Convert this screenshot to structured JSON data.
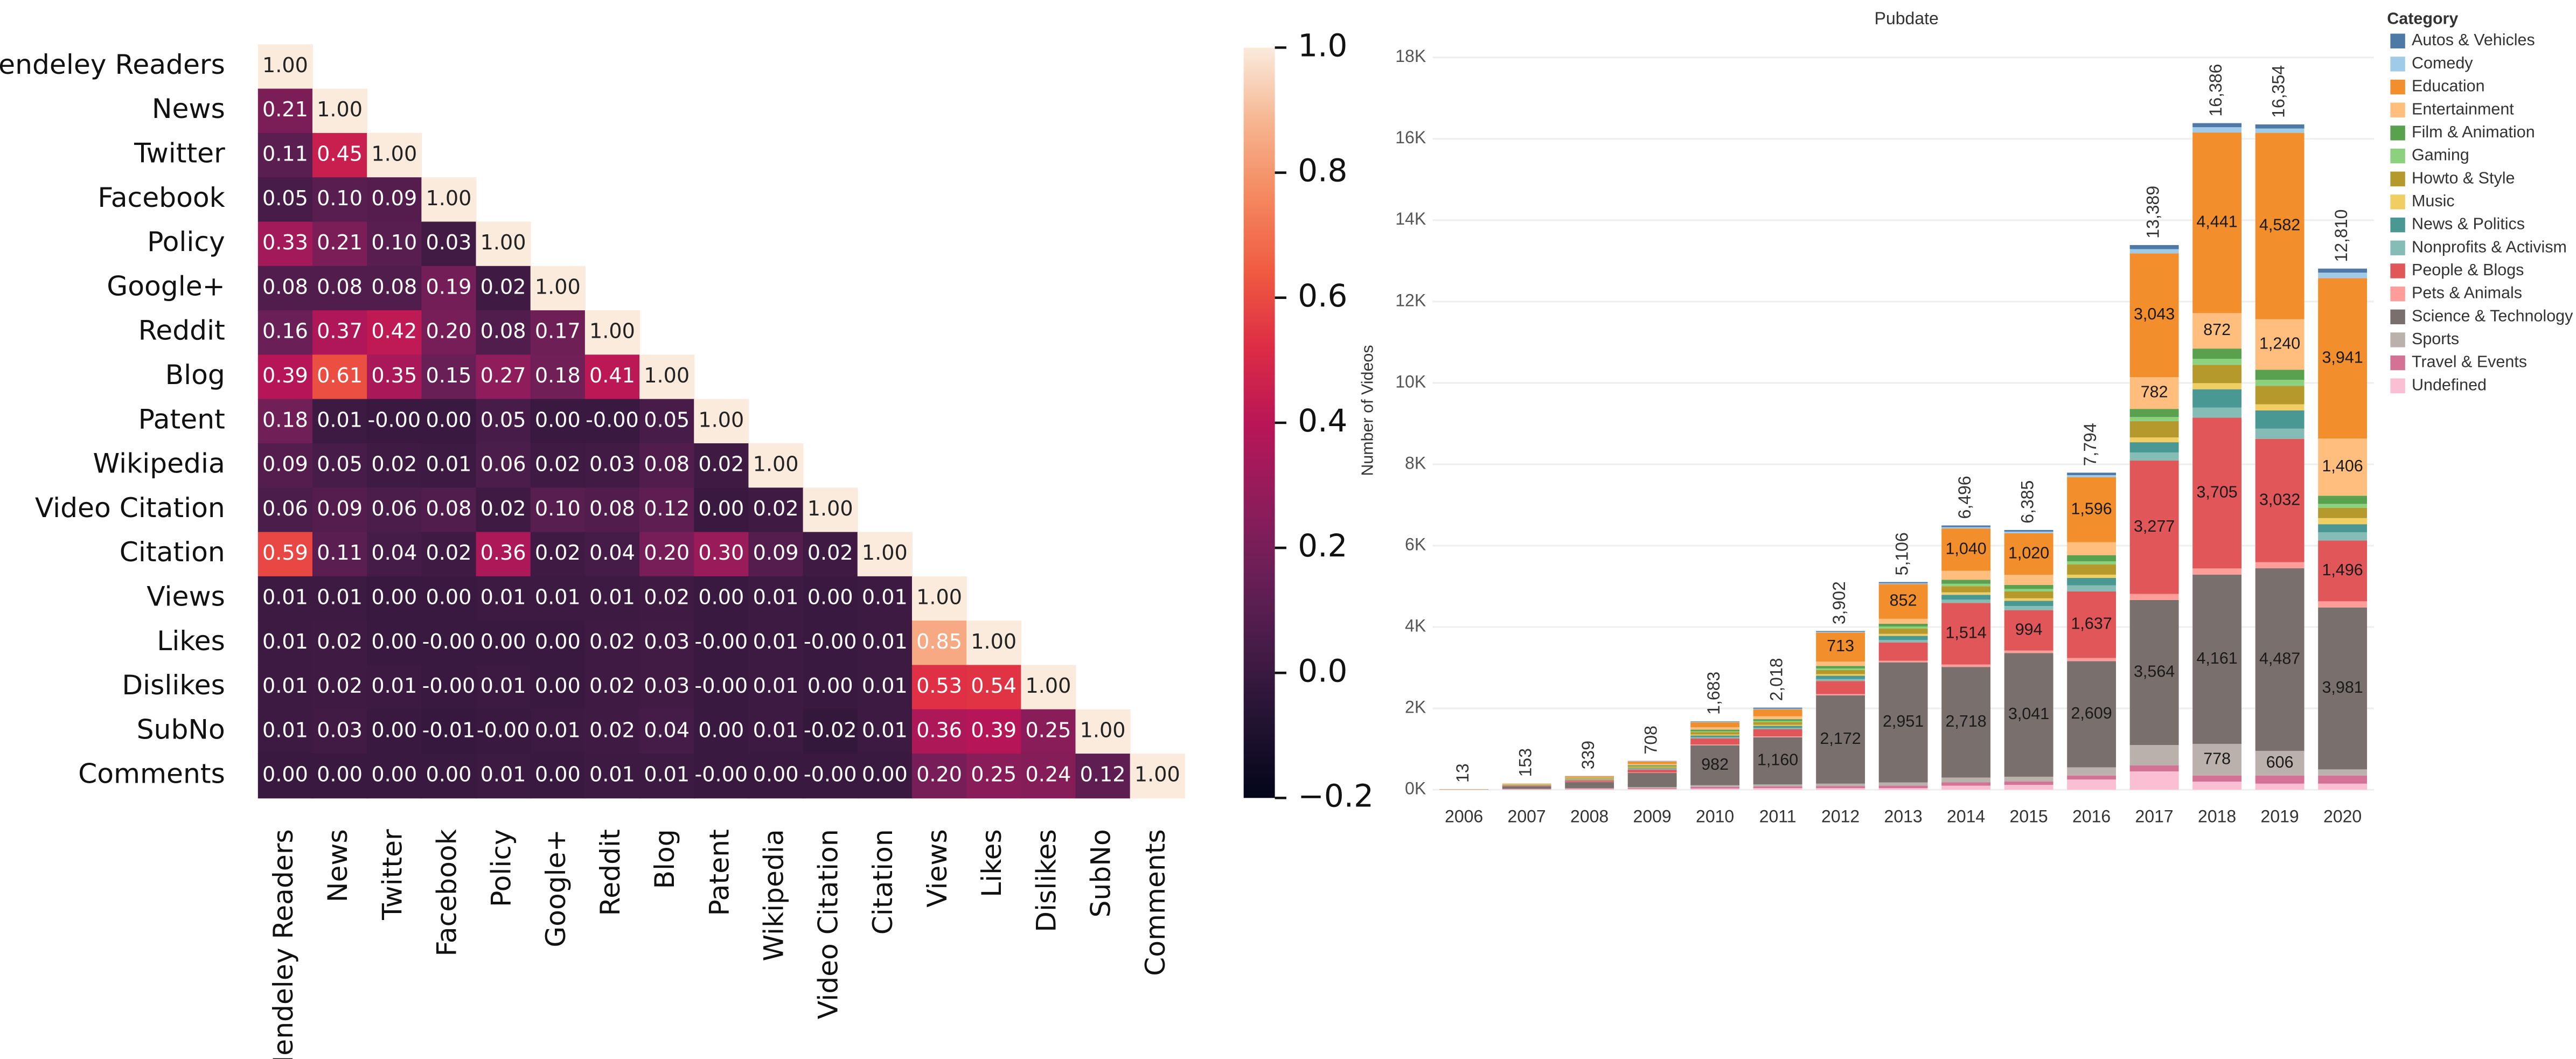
{
  "chart_data": [
    {
      "type": "heatmap",
      "row_labels": [
        "Mendeley Readers",
        "News",
        "Twitter",
        "Facebook",
        "Policy",
        "Google+",
        "Reddit",
        "Blog",
        "Patent",
        "Wikipedia",
        "Video Citation",
        "Citation",
        "Views",
        "Likes",
        "Dislikes",
        "SubNo",
        "Comments"
      ],
      "col_labels": [
        "Mendeley Readers",
        "News",
        "Twitter",
        "Facebook",
        "Policy",
        "Google+",
        "Reddit",
        "Blog",
        "Patent",
        "Wikipedia",
        "Video Citation",
        "Citation",
        "Views",
        "Likes",
        "Dislikes",
        "SubNo",
        "Comments"
      ],
      "values": [
        [
          1
        ],
        [
          0.21,
          1
        ],
        [
          0.11,
          0.45,
          1
        ],
        [
          0.05,
          0.1,
          0.09,
          1
        ],
        [
          0.33,
          0.21,
          0.1,
          0.03,
          1
        ],
        [
          0.08,
          0.08,
          0.08,
          0.19,
          0.02,
          1
        ],
        [
          0.16,
          0.37,
          0.42,
          0.2,
          0.08,
          0.17,
          1
        ],
        [
          0.39,
          0.61,
          0.35,
          0.15,
          0.27,
          0.18,
          0.41,
          1
        ],
        [
          0.18,
          0.01,
          0,
          0,
          0.05,
          0,
          0,
          0.05,
          1
        ],
        [
          0.09,
          0.05,
          0.02,
          0.01,
          0.06,
          0.02,
          0.03,
          0.08,
          0.02,
          1
        ],
        [
          0.06,
          0.09,
          0.06,
          0.08,
          0.02,
          0.1,
          0.08,
          0.12,
          0,
          0.02,
          1
        ],
        [
          0.59,
          0.11,
          0.04,
          0.02,
          0.36,
          0.02,
          0.04,
          0.2,
          0.3,
          0.09,
          0.02,
          1
        ],
        [
          0.01,
          0.01,
          0,
          0,
          0.01,
          0.01,
          0.01,
          0.02,
          0,
          0.01,
          0,
          0.01,
          1
        ],
        [
          0.01,
          0.02,
          0,
          0,
          0,
          0,
          0.02,
          0.03,
          0,
          0.01,
          0,
          0.01,
          0.85,
          1
        ],
        [
          0.01,
          0.02,
          0.01,
          0,
          0.01,
          0,
          0.02,
          0.03,
          0,
          0.01,
          0,
          0.01,
          0.53,
          0.54,
          1
        ],
        [
          0.01,
          0.03,
          0,
          -0.01,
          0,
          0.01,
          0.02,
          0.04,
          0,
          0.01,
          -0.02,
          0.01,
          0.36,
          0.39,
          0.25,
          1
        ],
        [
          0,
          0,
          0,
          0,
          0.01,
          0,
          0.01,
          0.01,
          0,
          0,
          0,
          0,
          0.2,
          0.25,
          0.24,
          0.12,
          1
        ]
      ],
      "value_labels": [
        [
          "1.00"
        ],
        [
          "0.21",
          "1.00"
        ],
        [
          "0.11",
          "0.45",
          "1.00"
        ],
        [
          "0.05",
          "0.10",
          "0.09",
          "1.00"
        ],
        [
          "0.33",
          "0.21",
          "0.10",
          "0.03",
          "1.00"
        ],
        [
          "0.08",
          "0.08",
          "0.08",
          "0.19",
          "0.02",
          "1.00"
        ],
        [
          "0.16",
          "0.37",
          "0.42",
          "0.20",
          "0.08",
          "0.17",
          "1.00"
        ],
        [
          "0.39",
          "0.61",
          "0.35",
          "0.15",
          "0.27",
          "0.18",
          "0.41",
          "1.00"
        ],
        [
          "0.18",
          "0.01",
          "-0.00",
          "0.00",
          "0.05",
          "0.00",
          "-0.00",
          "0.05",
          "1.00"
        ],
        [
          "0.09",
          "0.05",
          "0.02",
          "0.01",
          "0.06",
          "0.02",
          "0.03",
          "0.08",
          "0.02",
          "1.00"
        ],
        [
          "0.06",
          "0.09",
          "0.06",
          "0.08",
          "0.02",
          "0.10",
          "0.08",
          "0.12",
          "0.00",
          "0.02",
          "1.00"
        ],
        [
          "0.59",
          "0.11",
          "0.04",
          "0.02",
          "0.36",
          "0.02",
          "0.04",
          "0.20",
          "0.30",
          "0.09",
          "0.02",
          "1.00"
        ],
        [
          "0.01",
          "0.01",
          "0.00",
          "0.00",
          "0.01",
          "0.01",
          "0.01",
          "0.02",
          "0.00",
          "0.01",
          "0.00",
          "0.01",
          "1.00"
        ],
        [
          "0.01",
          "0.02",
          "0.00",
          "-0.00",
          "0.00",
          "0.00",
          "0.02",
          "0.03",
          "-0.00",
          "0.01",
          "-0.00",
          "0.01",
          "0.85",
          "1.00"
        ],
        [
          "0.01",
          "0.02",
          "0.01",
          "-0.00",
          "0.01",
          "0.00",
          "0.02",
          "0.03",
          "-0.00",
          "0.01",
          "0.00",
          "0.01",
          "0.53",
          "0.54",
          "1.00"
        ],
        [
          "0.01",
          "0.03",
          "0.00",
          "-0.01",
          "-0.00",
          "0.01",
          "0.02",
          "0.04",
          "0.00",
          "0.01",
          "-0.02",
          "0.01",
          "0.36",
          "0.39",
          "0.25",
          "1.00"
        ],
        [
          "0.00",
          "0.00",
          "0.00",
          "0.00",
          "0.01",
          "0.00",
          "0.01",
          "0.01",
          "-0.00",
          "0.00",
          "-0.00",
          "0.00",
          "0.20",
          "0.25",
          "0.24",
          "0.12",
          "1.00"
        ]
      ],
      "colormap": "rocket",
      "colorbar_lim": [
        -0.2,
        1.0
      ],
      "colorbar_ticks": [
        {
          "value": 1.0,
          "label": "1.0"
        },
        0.8,
        0.6,
        0.4,
        0.2,
        {
          "value": 0,
          "label": "0.0"
        },
        {
          "value": -0.2,
          "label": "−0.2"
        }
      ]
    },
    {
      "type": "stacked_bar",
      "title": "Pubdate",
      "ylabel": "Number of Videos",
      "legend_title": "Category",
      "categories": [
        "2006",
        "2007",
        "2008",
        "2009",
        "2010",
        "2011",
        "2012",
        "2013",
        "2014",
        "2015",
        "2016",
        "2017",
        "2018",
        "2019",
        "2020"
      ],
      "series": [
        {
          "name": "Autos & Vehicles",
          "color": "#4e79a7",
          "values": [
            0,
            1,
            3,
            5,
            10,
            25,
            20,
            30,
            40,
            40,
            60,
            100,
            100,
            100,
            100
          ]
        },
        {
          "name": "Comedy",
          "color": "#a0cbe8",
          "values": [
            0,
            2,
            5,
            8,
            16,
            18,
            17,
            23,
            34,
            40,
            52,
            103,
            129,
            107,
            136
          ]
        },
        {
          "name": "Education",
          "color": "#f28e2b",
          "values": [
            3,
            12,
            30,
            60,
            120,
            170,
            713,
            852,
            1040,
            1020,
            1596,
            3043,
            4441,
            4582,
            3941
          ],
          "value_labels": [
            null,
            null,
            null,
            null,
            null,
            null,
            "713",
            "852",
            "1,040",
            "1,020",
            "1,596",
            "3,043",
            "4,441",
            "4,582",
            "3,941"
          ]
        },
        {
          "name": "Entertainment",
          "color": "#ffbe7d",
          "values": [
            2,
            8,
            15,
            30,
            60,
            70,
            110,
            120,
            220,
            250,
            320,
            782,
            872,
            1240,
            1406
          ],
          "value_labels": [
            null,
            null,
            null,
            null,
            null,
            null,
            null,
            null,
            null,
            null,
            null,
            "782",
            "872",
            "1,240",
            "1,406"
          ]
        },
        {
          "name": "Film & Animation",
          "color": "#59a14f",
          "values": [
            0,
            5,
            10,
            20,
            40,
            45,
            60,
            70,
            100,
            100,
            150,
            200,
            250,
            250,
            200
          ]
        },
        {
          "name": "Gaming",
          "color": "#8cd17d",
          "values": [
            0,
            3,
            5,
            10,
            20,
            25,
            40,
            50,
            60,
            60,
            80,
            100,
            150,
            150,
            100
          ]
        },
        {
          "name": "Howto & Style",
          "color": "#b6992d",
          "values": [
            1,
            8,
            15,
            30,
            60,
            70,
            100,
            130,
            150,
            170,
            250,
            400,
            450,
            450,
            250
          ]
        },
        {
          "name": "Music",
          "color": "#f1ce63",
          "values": [
            0,
            5,
            8,
            15,
            25,
            25,
            40,
            50,
            60,
            60,
            80,
            120,
            150,
            150,
            150
          ]
        },
        {
          "name": "News & Politics",
          "color": "#499894",
          "values": [
            0,
            5,
            10,
            20,
            40,
            50,
            80,
            100,
            120,
            130,
            180,
            250,
            450,
            450,
            200
          ]
        },
        {
          "name": "Nonprofits & Activism",
          "color": "#86bcb6",
          "values": [
            0,
            3,
            8,
            15,
            30,
            30,
            50,
            60,
            80,
            100,
            150,
            200,
            250,
            250,
            200
          ]
        },
        {
          "name": "People & Blogs",
          "color": "#e15759",
          "values": [
            1,
            15,
            35,
            70,
            150,
            180,
            320,
            450,
            1514,
            994,
            1637,
            3277,
            3705,
            3032,
            1496
          ],
          "value_labels": [
            null,
            null,
            null,
            null,
            null,
            null,
            null,
            null,
            "1,514",
            "994",
            "1,637",
            "3,277",
            "3,705",
            "3,032",
            "1,496"
          ]
        },
        {
          "name": "Pets & Animals",
          "color": "#ff9d9a",
          "values": [
            0,
            3,
            5,
            10,
            20,
            20,
            30,
            40,
            60,
            60,
            80,
            150,
            150,
            150,
            150
          ]
        },
        {
          "name": "Science & Technology",
          "color": "#79706e",
          "values": [
            5,
            60,
            150,
            350,
            982,
            1160,
            2172,
            2951,
            2718,
            3041,
            2609,
            3564,
            4161,
            4487,
            3981
          ],
          "value_labels": [
            null,
            null,
            null,
            null,
            "982",
            "1,160",
            "2,172",
            "2,951",
            "2,718",
            "3,041",
            "2,609",
            "3,564",
            "4,161",
            "4,487",
            "3,981"
          ]
        },
        {
          "name": "Sports",
          "color": "#bab0ac",
          "values": [
            0,
            8,
            15,
            25,
            40,
            50,
            60,
            80,
            120,
            120,
            200,
            500,
            778,
            606,
            150
          ],
          "value_labels": [
            null,
            null,
            null,
            null,
            null,
            null,
            null,
            null,
            null,
            null,
            null,
            null,
            "778",
            "606",
            null
          ]
        },
        {
          "name": "Travel & Events",
          "color": "#d37295",
          "values": [
            0,
            5,
            10,
            20,
            40,
            40,
            50,
            60,
            80,
            80,
            100,
            150,
            150,
            200,
            200
          ]
        },
        {
          "name": "Undefined",
          "color": "#fabfd2",
          "values": [
            1,
            10,
            15,
            20,
            30,
            40,
            40,
            40,
            100,
            120,
            250,
            450,
            200,
            150,
            150
          ]
        }
      ],
      "totals": [
        13,
        153,
        339,
        708,
        1683,
        2018,
        3902,
        5106,
        6496,
        6385,
        7794,
        13389,
        16386,
        16354,
        12810
      ],
      "total_labels": [
        "13",
        "153",
        "339",
        "708",
        "1,683",
        "2,018",
        "3,902",
        "5,106",
        "6,496",
        "6,385",
        "7,794",
        "13,389",
        "16,386",
        "16,354",
        "12,810"
      ],
      "ylim": [
        0,
        18000
      ],
      "yticks": [
        {
          "value": 0,
          "label": "0K"
        },
        {
          "value": 2000,
          "label": "2K"
        },
        {
          "value": 4000,
          "label": "4K"
        },
        {
          "value": 6000,
          "label": "6K"
        },
        {
          "value": 8000,
          "label": "8K"
        },
        {
          "value": 10000,
          "label": "10K"
        },
        {
          "value": 12000,
          "label": "12K"
        },
        {
          "value": 14000,
          "label": "14K"
        },
        {
          "value": 16000,
          "label": "16K"
        },
        {
          "value": 18000,
          "label": "18K"
        }
      ],
      "grid": true
    }
  ]
}
